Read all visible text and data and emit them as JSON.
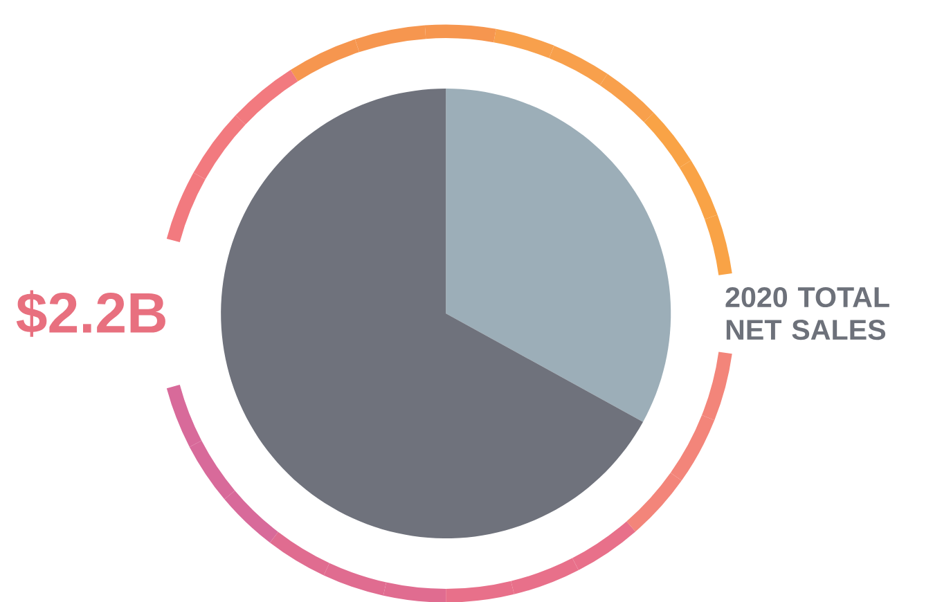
{
  "chart_data": {
    "type": "pie",
    "title": "2020 TOTAL NET SALES",
    "categories": [
      null,
      null
    ],
    "values": [
      33,
      67
    ],
    "colors": [
      "#9caeb8",
      "#6f727c"
    ],
    "annotations": [
      "$2.2B"
    ]
  }
}
